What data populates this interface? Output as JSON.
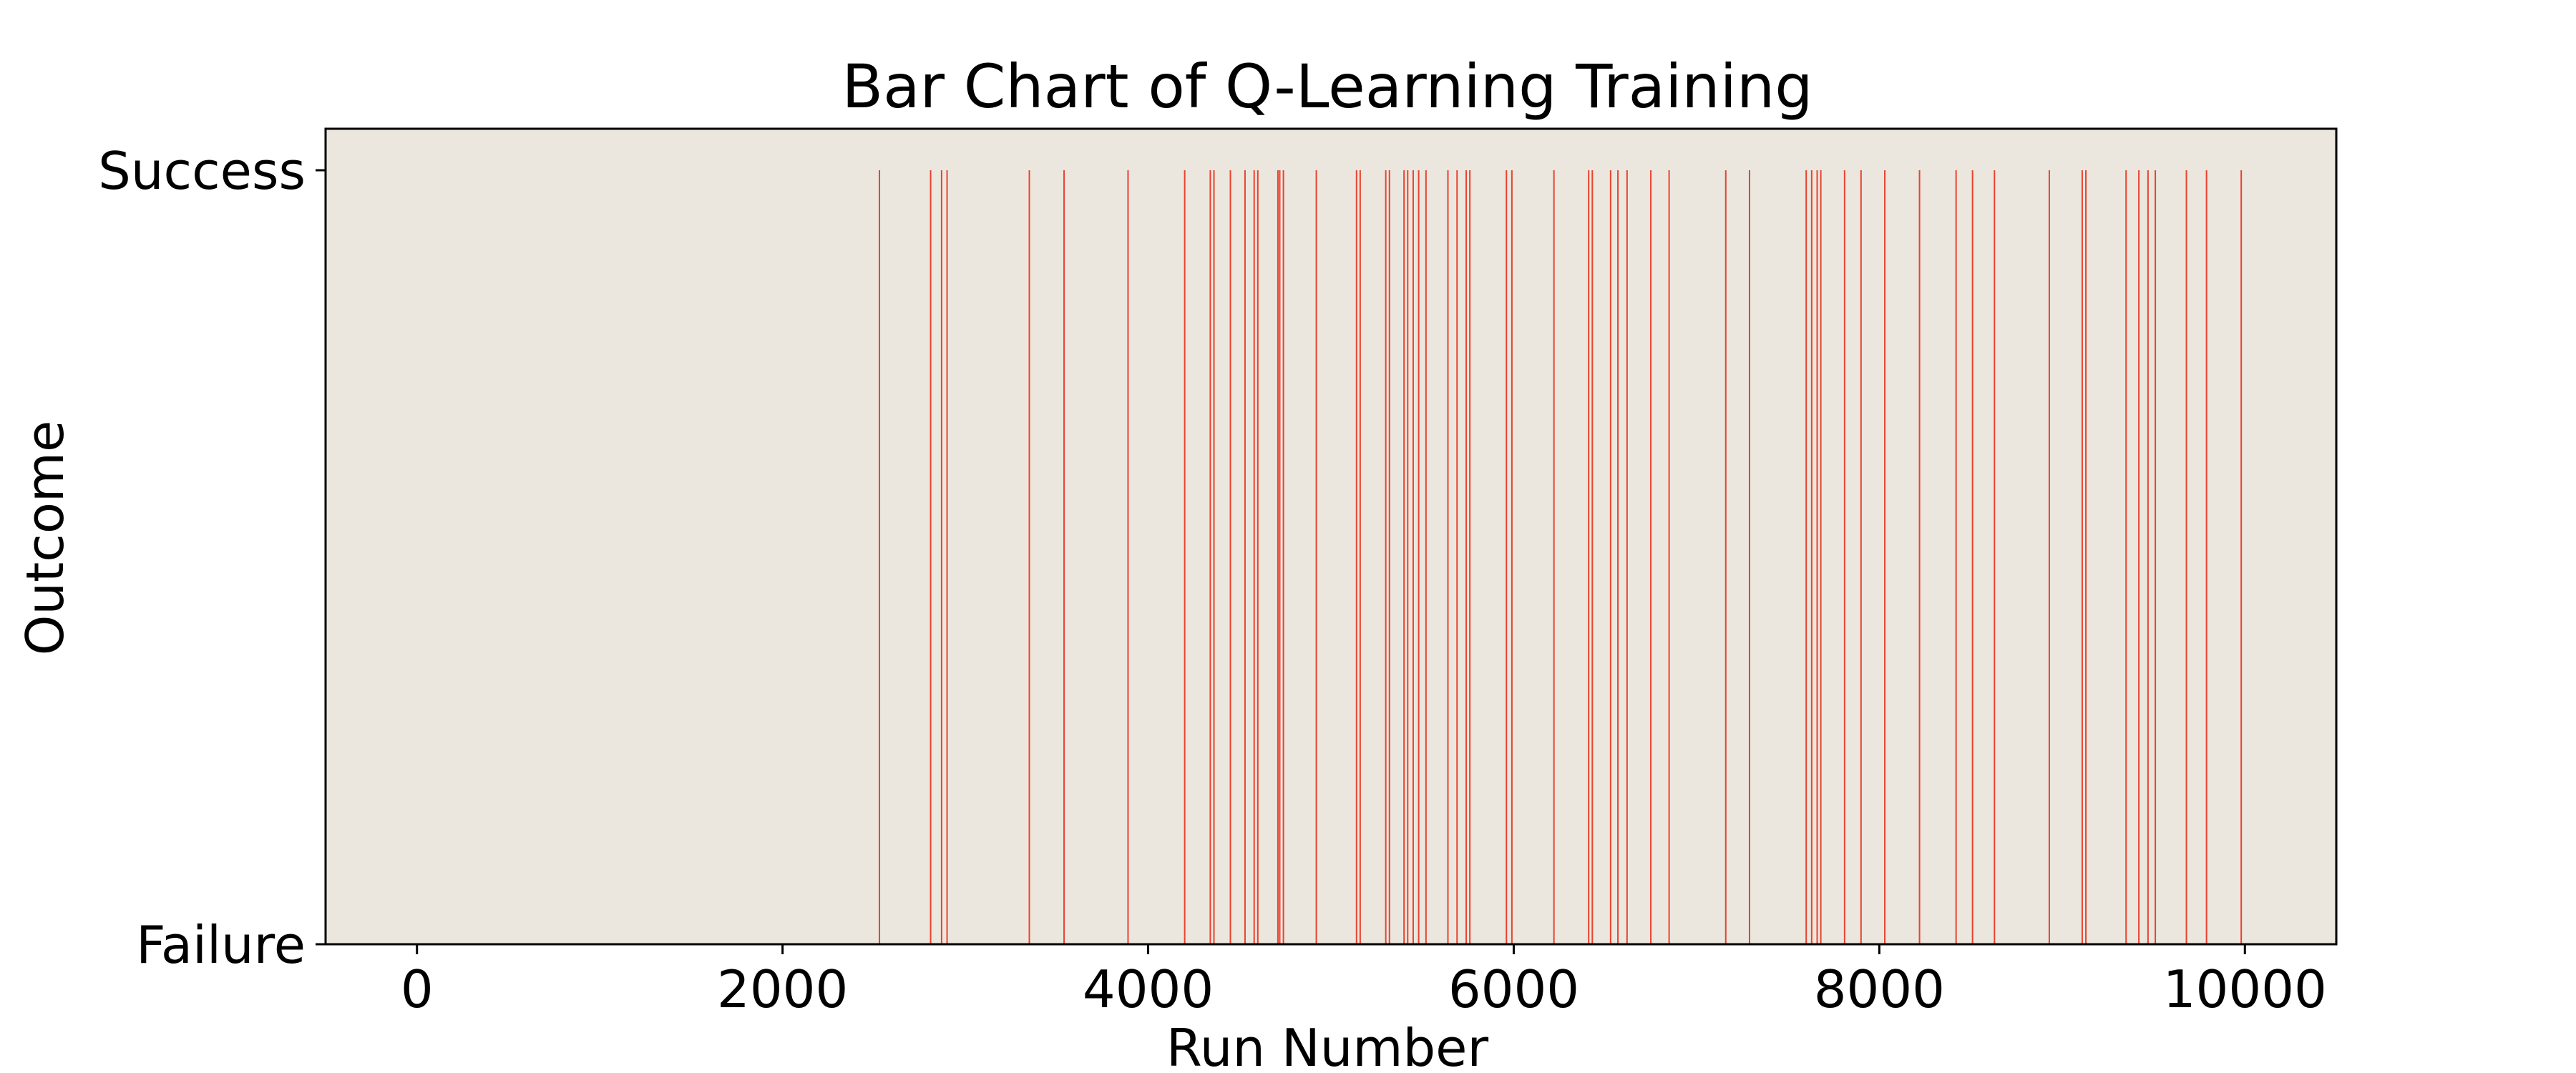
{
  "chart_data": {
    "type": "bar",
    "title": "Bar Chart of Q-Learning Training",
    "xlabel": "Run Number",
    "ylabel": "Outcome",
    "xlim": [
      -500,
      10500
    ],
    "ylim": [
      0,
      1
    ],
    "x_ticks": [
      0,
      2000,
      4000,
      6000,
      8000,
      10000
    ],
    "y_ticks": [
      {
        "value": 0,
        "label": "Failure"
      },
      {
        "value": 1,
        "label": "Success"
      }
    ],
    "grid": false,
    "legend": "none",
    "background_color": "#ebe7df",
    "bar_color": "#e8432f",
    "success_runs": [
      2530,
      2810,
      2870,
      2900,
      3350,
      3540,
      3890,
      4200,
      4340,
      4360,
      4450,
      4530,
      4580,
      4600,
      4710,
      4720,
      4740,
      4920,
      5140,
      5160,
      5300,
      5320,
      5400,
      5420,
      5450,
      5480,
      5520,
      5640,
      5690,
      5740,
      5760,
      5960,
      5990,
      6220,
      6410,
      6430,
      6530,
      6570,
      6620,
      6750,
      6850,
      7160,
      7290,
      7600,
      7630,
      7660,
      7680,
      7810,
      7900,
      8030,
      8220,
      8420,
      8510,
      8630,
      8930,
      9110,
      9130,
      9350,
      9420,
      9470,
      9510,
      9680,
      9790,
      9980
    ]
  }
}
